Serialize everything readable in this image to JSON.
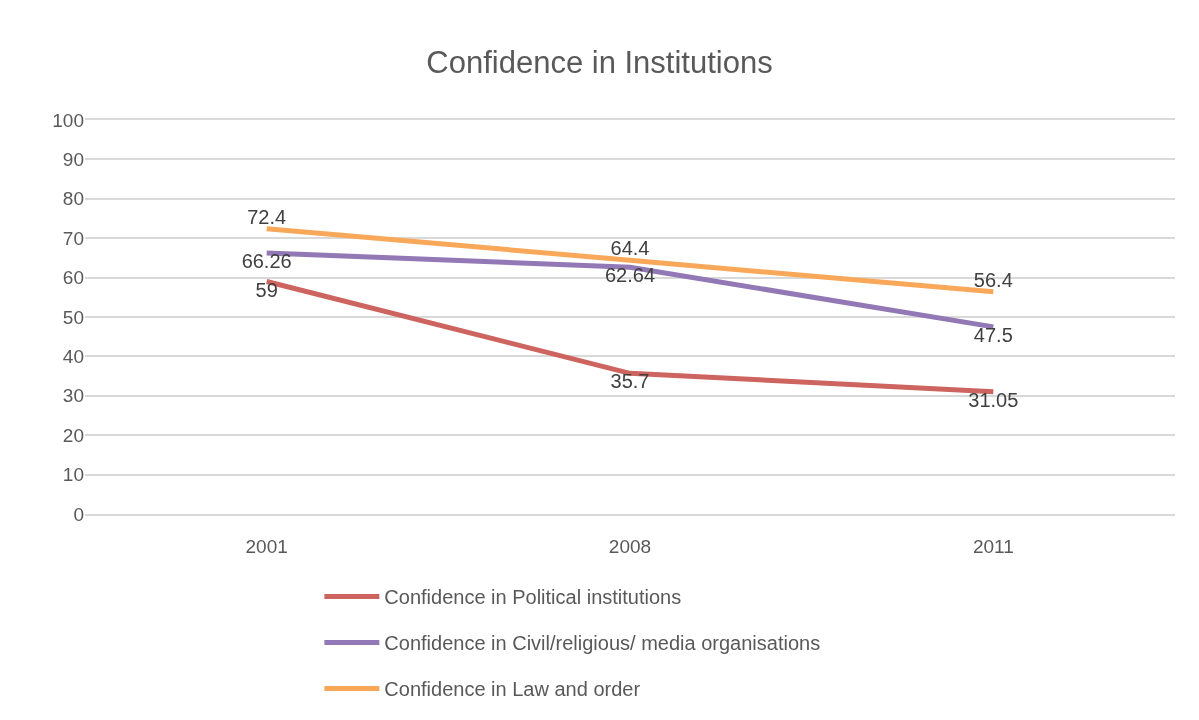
{
  "chart_data": {
    "type": "line",
    "title": "Confidence in Institutions",
    "categories": [
      "2001",
      "2008",
      "2011"
    ],
    "series": [
      {
        "name": "Confidence in Political institutions",
        "color": "#cd6460",
        "values": [
          59,
          35.7,
          31.05
        ]
      },
      {
        "name": "Confidence in Civil/religious/ media organisations",
        "color": "#9278b5",
        "values": [
          66.26,
          62.64,
          47.5
        ]
      },
      {
        "name": "Confidence in Law and order",
        "color": "#f9a85a",
        "values": [
          72.4,
          64.4,
          56.4
        ]
      }
    ],
    "ylim": [
      0,
      100
    ],
    "yticks": [
      0,
      10,
      20,
      30,
      40,
      50,
      60,
      70,
      80,
      90,
      100
    ],
    "grid": "y",
    "legend": "bottom",
    "data_labels": true,
    "line_style": "solid"
  }
}
